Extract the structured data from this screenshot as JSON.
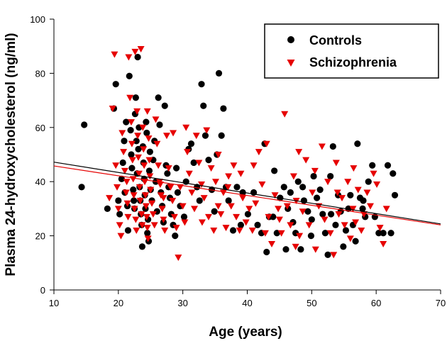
{
  "chart_data": {
    "type": "scatter",
    "title": "",
    "xlabel": "Age (years)",
    "ylabel": "Plasma 24-hydroxycholesterol (ng/ml)",
    "xlim": [
      10,
      70
    ],
    "ylim": [
      0,
      100
    ],
    "xticks": [
      "10",
      "20",
      "30",
      "40",
      "50",
      "60",
      "70"
    ],
    "yticks": [
      "0",
      "20",
      "40",
      "60",
      "80",
      "100"
    ],
    "legend_position": "top-right",
    "series": [
      {
        "name": "Controls",
        "marker": "circle",
        "color": "#000000",
        "fit_line": [
          [
            10,
            47.2
          ],
          [
            70,
            24.4
          ]
        ],
        "points": [
          [
            14.3,
            38
          ],
          [
            14.7,
            61
          ],
          [
            18.3,
            30
          ],
          [
            19.3,
            67
          ],
          [
            19.6,
            76
          ],
          [
            20.0,
            33
          ],
          [
            20.2,
            28
          ],
          [
            20.5,
            41
          ],
          [
            20.7,
            47
          ],
          [
            20.9,
            55
          ],
          [
            21.0,
            36
          ],
          [
            21.2,
            62
          ],
          [
            21.4,
            31
          ],
          [
            21.5,
            22
          ],
          [
            21.7,
            79
          ],
          [
            21.9,
            59
          ],
          [
            22.0,
            50
          ],
          [
            22.1,
            45
          ],
          [
            22.3,
            37
          ],
          [
            22.4,
            33
          ],
          [
            22.5,
            30
          ],
          [
            22.6,
            65
          ],
          [
            22.7,
            71
          ],
          [
            22.8,
            55
          ],
          [
            22.9,
            43
          ],
          [
            23.0,
            86
          ],
          [
            23.1,
            52
          ],
          [
            23.2,
            60
          ],
          [
            23.3,
            38
          ],
          [
            23.4,
            33
          ],
          [
            23.5,
            28
          ],
          [
            23.6,
            24
          ],
          [
            23.7,
            16
          ],
          [
            23.8,
            53
          ],
          [
            23.9,
            47
          ],
          [
            24.0,
            41
          ],
          [
            24.1,
            35
          ],
          [
            24.2,
            30
          ],
          [
            24.3,
            62
          ],
          [
            24.4,
            58
          ],
          [
            24.5,
            21
          ],
          [
            24.6,
            26
          ],
          [
            24.7,
            18
          ],
          [
            24.8,
            44
          ],
          [
            24.9,
            51
          ],
          [
            25.0,
            37
          ],
          [
            25.2,
            33
          ],
          [
            25.4,
            48
          ],
          [
            25.6,
            55
          ],
          [
            25.8,
            40
          ],
          [
            26.0,
            29
          ],
          [
            26.2,
            71
          ],
          [
            26.4,
            61
          ],
          [
            26.6,
            36
          ],
          [
            26.8,
            31
          ],
          [
            27.0,
            25
          ],
          [
            27.2,
            68
          ],
          [
            27.4,
            46
          ],
          [
            27.6,
            43
          ],
          [
            27.8,
            38
          ],
          [
            28.0,
            34
          ],
          [
            28.2,
            28
          ],
          [
            28.5,
            24
          ],
          [
            28.8,
            20
          ],
          [
            29.0,
            45
          ],
          [
            29.2,
            36
          ],
          [
            29.6,
            31
          ],
          [
            30.2,
            27
          ],
          [
            30.5,
            40
          ],
          [
            30.9,
            52
          ],
          [
            31.3,
            54
          ],
          [
            31.7,
            47
          ],
          [
            32.2,
            38
          ],
          [
            32.6,
            33
          ],
          [
            32.9,
            76
          ],
          [
            33.2,
            68
          ],
          [
            33.5,
            57
          ],
          [
            34.0,
            48
          ],
          [
            34.5,
            37
          ],
          [
            34.9,
            29
          ],
          [
            35.3,
            50
          ],
          [
            35.6,
            80
          ],
          [
            36.0,
            57
          ],
          [
            36.3,
            67
          ],
          [
            36.7,
            38
          ],
          [
            37.1,
            33
          ],
          [
            37.8,
            22
          ],
          [
            38.4,
            38
          ],
          [
            39.3,
            36
          ],
          [
            40.1,
            28
          ],
          [
            41.0,
            36
          ],
          [
            41.6,
            24
          ],
          [
            42.2,
            21
          ],
          [
            42.7,
            54
          ],
          [
            43.0,
            14
          ],
          [
            43.4,
            27
          ],
          [
            44.2,
            44
          ],
          [
            44.6,
            21
          ],
          [
            45.1,
            34
          ],
          [
            45.7,
            38
          ],
          [
            46.3,
            30
          ],
          [
            46.7,
            36
          ],
          [
            47.1,
            25
          ],
          [
            47.5,
            21
          ],
          [
            47.9,
            40
          ],
          [
            48.3,
            15
          ],
          [
            48.8,
            33
          ],
          [
            49.4,
            29
          ],
          [
            49.9,
            20
          ],
          [
            50.3,
            42
          ],
          [
            50.8,
            34
          ],
          [
            51.3,
            37
          ],
          [
            51.7,
            28
          ],
          [
            52.1,
            21
          ],
          [
            52.5,
            13
          ],
          [
            52.9,
            42
          ],
          [
            53.3,
            53
          ],
          [
            53.7,
            24
          ],
          [
            54.1,
            35
          ],
          [
            54.5,
            29
          ],
          [
            54.9,
            16
          ],
          [
            55.3,
            22
          ],
          [
            55.7,
            30
          ],
          [
            56.0,
            35
          ],
          [
            56.4,
            24
          ],
          [
            56.8,
            18
          ],
          [
            57.1,
            54
          ],
          [
            57.5,
            34
          ],
          [
            57.9,
            30
          ],
          [
            58.3,
            27
          ],
          [
            58.8,
            40
          ],
          [
            59.4,
            46
          ],
          [
            59.8,
            27
          ],
          [
            60.4,
            21
          ],
          [
            61.1,
            21
          ],
          [
            61.8,
            46
          ],
          [
            62.3,
            21
          ],
          [
            62.6,
            43
          ],
          [
            62.9,
            35
          ],
          [
            48.6,
            38
          ],
          [
            50.0,
            26
          ],
          [
            44.0,
            27
          ],
          [
            39.0,
            24
          ],
          [
            46.0,
            15
          ],
          [
            53.0,
            28
          ],
          [
            58.0,
            33
          ]
        ]
      },
      {
        "name": "Schizophrenia",
        "marker": "triangle-down",
        "color": "#e60000",
        "fit_line": [
          [
            10,
            45.8
          ],
          [
            70,
            24.0
          ]
        ],
        "points": [
          [
            18.6,
            34
          ],
          [
            19.1,
            67
          ],
          [
            19.4,
            87
          ],
          [
            19.6,
            46
          ],
          [
            19.8,
            38
          ],
          [
            20.0,
            30
          ],
          [
            20.2,
            24
          ],
          [
            20.4,
            20
          ],
          [
            20.6,
            58
          ],
          [
            20.8,
            51
          ],
          [
            21.0,
            44
          ],
          [
            21.2,
            36
          ],
          [
            21.4,
            32
          ],
          [
            21.5,
            27
          ],
          [
            21.6,
            86
          ],
          [
            21.8,
            71
          ],
          [
            22.0,
            62
          ],
          [
            22.1,
            54
          ],
          [
            22.2,
            48
          ],
          [
            22.3,
            41
          ],
          [
            22.4,
            35
          ],
          [
            22.5,
            30
          ],
          [
            22.6,
            88
          ],
          [
            22.7,
            26
          ],
          [
            22.8,
            22
          ],
          [
            22.9,
            66
          ],
          [
            23.0,
            57
          ],
          [
            23.1,
            49
          ],
          [
            23.2,
            43
          ],
          [
            23.3,
            38
          ],
          [
            23.4,
            33
          ],
          [
            23.5,
            89
          ],
          [
            23.6,
            28
          ],
          [
            23.7,
            24
          ],
          [
            23.8,
            60
          ],
          [
            23.9,
            52
          ],
          [
            24.0,
            46
          ],
          [
            24.1,
            40
          ],
          [
            24.2,
            35
          ],
          [
            24.3,
            31
          ],
          [
            24.4,
            27
          ],
          [
            24.5,
            23
          ],
          [
            24.6,
            19
          ],
          [
            24.7,
            56
          ],
          [
            24.8,
            48
          ],
          [
            24.9,
            42
          ],
          [
            25.0,
            37
          ],
          [
            25.2,
            32
          ],
          [
            25.4,
            28
          ],
          [
            25.6,
            24
          ],
          [
            25.8,
            63
          ],
          [
            26.0,
            54
          ],
          [
            26.2,
            46
          ],
          [
            26.4,
            40
          ],
          [
            26.6,
            35
          ],
          [
            26.8,
            30
          ],
          [
            27.0,
            26
          ],
          [
            27.2,
            22
          ],
          [
            27.5,
            57
          ],
          [
            27.8,
            45
          ],
          [
            28.1,
            38
          ],
          [
            28.4,
            33
          ],
          [
            28.7,
            27
          ],
          [
            29.0,
            23
          ],
          [
            29.3,
            12
          ],
          [
            29.6,
            38
          ],
          [
            30.0,
            31
          ],
          [
            30.3,
            25
          ],
          [
            30.7,
            51
          ],
          [
            31.0,
            43
          ],
          [
            31.4,
            36
          ],
          [
            31.8,
            30
          ],
          [
            32.1,
            57
          ],
          [
            32.5,
            47
          ],
          [
            32.9,
            39
          ],
          [
            33.3,
            34
          ],
          [
            33.7,
            59
          ],
          [
            34.0,
            27
          ],
          [
            34.4,
            45
          ],
          [
            34.8,
            22
          ],
          [
            35.1,
            40
          ],
          [
            35.5,
            50
          ],
          [
            35.9,
            28
          ],
          [
            36.3,
            36
          ],
          [
            36.7,
            23
          ],
          [
            37.1,
            42
          ],
          [
            37.5,
            31
          ],
          [
            37.9,
            46
          ],
          [
            38.3,
            27
          ],
          [
            38.8,
            22
          ],
          [
            39.3,
            34
          ],
          [
            39.8,
            25
          ],
          [
            40.3,
            30
          ],
          [
            40.8,
            22
          ],
          [
            41.3,
            32
          ],
          [
            41.8,
            51
          ],
          [
            42.3,
            39
          ],
          [
            42.8,
            21
          ],
          [
            43.3,
            27
          ],
          [
            43.8,
            17
          ],
          [
            44.3,
            35
          ],
          [
            44.8,
            30
          ],
          [
            45.3,
            21
          ],
          [
            45.8,
            65
          ],
          [
            46.2,
            31
          ],
          [
            46.7,
            24
          ],
          [
            47.2,
            42
          ],
          [
            47.6,
            33
          ],
          [
            48.1,
            20
          ],
          [
            48.6,
            29
          ],
          [
            49.1,
            48
          ],
          [
            49.6,
            24
          ],
          [
            50.1,
            36
          ],
          [
            50.6,
            15
          ],
          [
            51.1,
            31
          ],
          [
            51.6,
            53
          ],
          [
            52.0,
            26
          ],
          [
            52.5,
            40
          ],
          [
            52.9,
            21
          ],
          [
            53.4,
            13
          ],
          [
            53.8,
            47
          ],
          [
            54.2,
            28
          ],
          [
            54.7,
            34
          ],
          [
            55.1,
            24
          ],
          [
            55.6,
            40
          ],
          [
            56.0,
            19
          ],
          [
            56.4,
            30
          ],
          [
            56.8,
            25
          ],
          [
            57.2,
            37
          ],
          [
            57.7,
            22
          ],
          [
            58.1,
            28
          ],
          [
            58.6,
            36
          ],
          [
            59.1,
            31
          ],
          [
            59.6,
            43
          ],
          [
            60.1,
            39
          ],
          [
            60.6,
            23
          ],
          [
            61.1,
            17
          ],
          [
            61.6,
            30
          ],
          [
            43.0,
            54
          ],
          [
            47.5,
            16
          ],
          [
            37.0,
            38
          ],
          [
            33.0,
            25
          ],
          [
            30.5,
            60
          ],
          [
            48.0,
            51
          ],
          [
            54.0,
            36
          ],
          [
            50.5,
            44
          ],
          [
            45.0,
            26
          ],
          [
            41.0,
            46
          ],
          [
            35.5,
            31
          ],
          [
            56.5,
            45
          ],
          [
            26.5,
            39
          ],
          [
            28.5,
            58
          ],
          [
            21.3,
            40
          ],
          [
            24.5,
            66
          ],
          [
            27.0,
            34
          ],
          [
            39.0,
            43
          ]
        ]
      }
    ]
  }
}
